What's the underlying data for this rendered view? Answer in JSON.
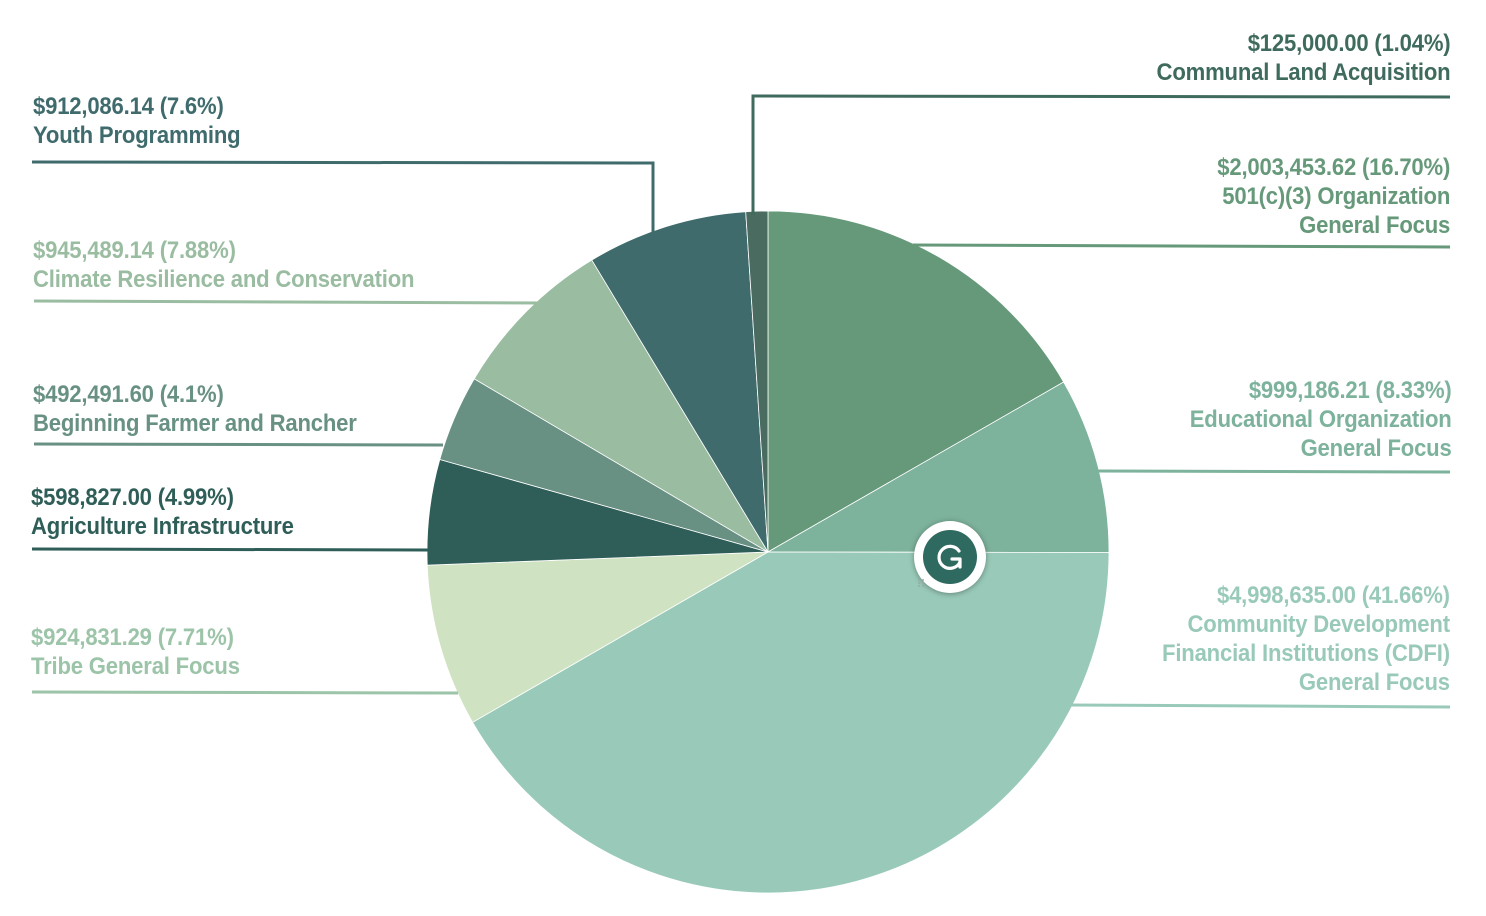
{
  "chart_data": {
    "type": "pie",
    "title": "",
    "slices": [
      {
        "label": "501(c)(3) Organization General Focus",
        "value": 2003453.62,
        "percent": 16.7,
        "color": "#66997a",
        "label_color": "#66997a",
        "line1": "$2,003,453.62 (16.70%)",
        "line2": "501(c)(3) Organization",
        "line3": "General Focus"
      },
      {
        "label": "Educational Organization General Focus",
        "value": 999186.21,
        "percent": 8.33,
        "color": "#7db29c",
        "label_color": "#7db29c",
        "line1": "$999,186.21 (8.33%)",
        "line2": "Educational Organization",
        "line3": "General Focus"
      },
      {
        "label": "Community Development Financial Institutions (CDFI) General Focus",
        "value": 4998635.0,
        "percent": 41.66,
        "color": "#99cab9",
        "label_color": "#99cab9",
        "line1": "$4,998,635.00 (41.66%)",
        "line2": "Community Development",
        "line3": "Financial Institutions (CDFI)",
        "line4": "General Focus"
      },
      {
        "label": "Tribe General Focus",
        "value": 924831.29,
        "percent": 7.71,
        "color": "#cfe2c2",
        "label_color": "#9cc4a8",
        "line1": "$924,831.29 (7.71%)",
        "line2": "Tribe General Focus"
      },
      {
        "label": "Agriculture Infrastructure",
        "value": 598827.0,
        "percent": 4.99,
        "color": "#2e5e57",
        "label_color": "#2e5e57",
        "line1": "$598,827.00 (4.99%)",
        "line2": "Agriculture Infrastructure"
      },
      {
        "label": "Beginning Farmer and Rancher",
        "value": 492491.6,
        "percent": 4.1,
        "color": "#689183",
        "label_color": "#689183",
        "line1": "$492,491.60 (4.1%)",
        "line2": "Beginning Farmer and Rancher"
      },
      {
        "label": "Climate Resilience and Conservation",
        "value": 945489.14,
        "percent": 7.88,
        "color": "#9abca1",
        "label_color": "#9abca1",
        "line1": "$945,489.14  (7.88%)",
        "line2": "Climate Resilience and Conservation"
      },
      {
        "label": "Youth Programming",
        "value": 912086.14,
        "percent": 7.6,
        "color": "#3f6b6c",
        "label_color": "#3f6b6c",
        "line1": "$912,086.14 (7.6%)",
        "line2": "Youth Programming"
      },
      {
        "label": "Communal Land Acquisition",
        "value": 125000.0,
        "percent": 1.04,
        "color": "#4a6b5f",
        "label_color": "#3f6a5e",
        "line1": "$125,000.00  (1.04%)",
        "line2": "Communal Land Acquisition"
      }
    ],
    "legend": "none",
    "grid": false
  },
  "overlay": {
    "icon": "grammarly-icon",
    "color": "#2f6a61"
  }
}
